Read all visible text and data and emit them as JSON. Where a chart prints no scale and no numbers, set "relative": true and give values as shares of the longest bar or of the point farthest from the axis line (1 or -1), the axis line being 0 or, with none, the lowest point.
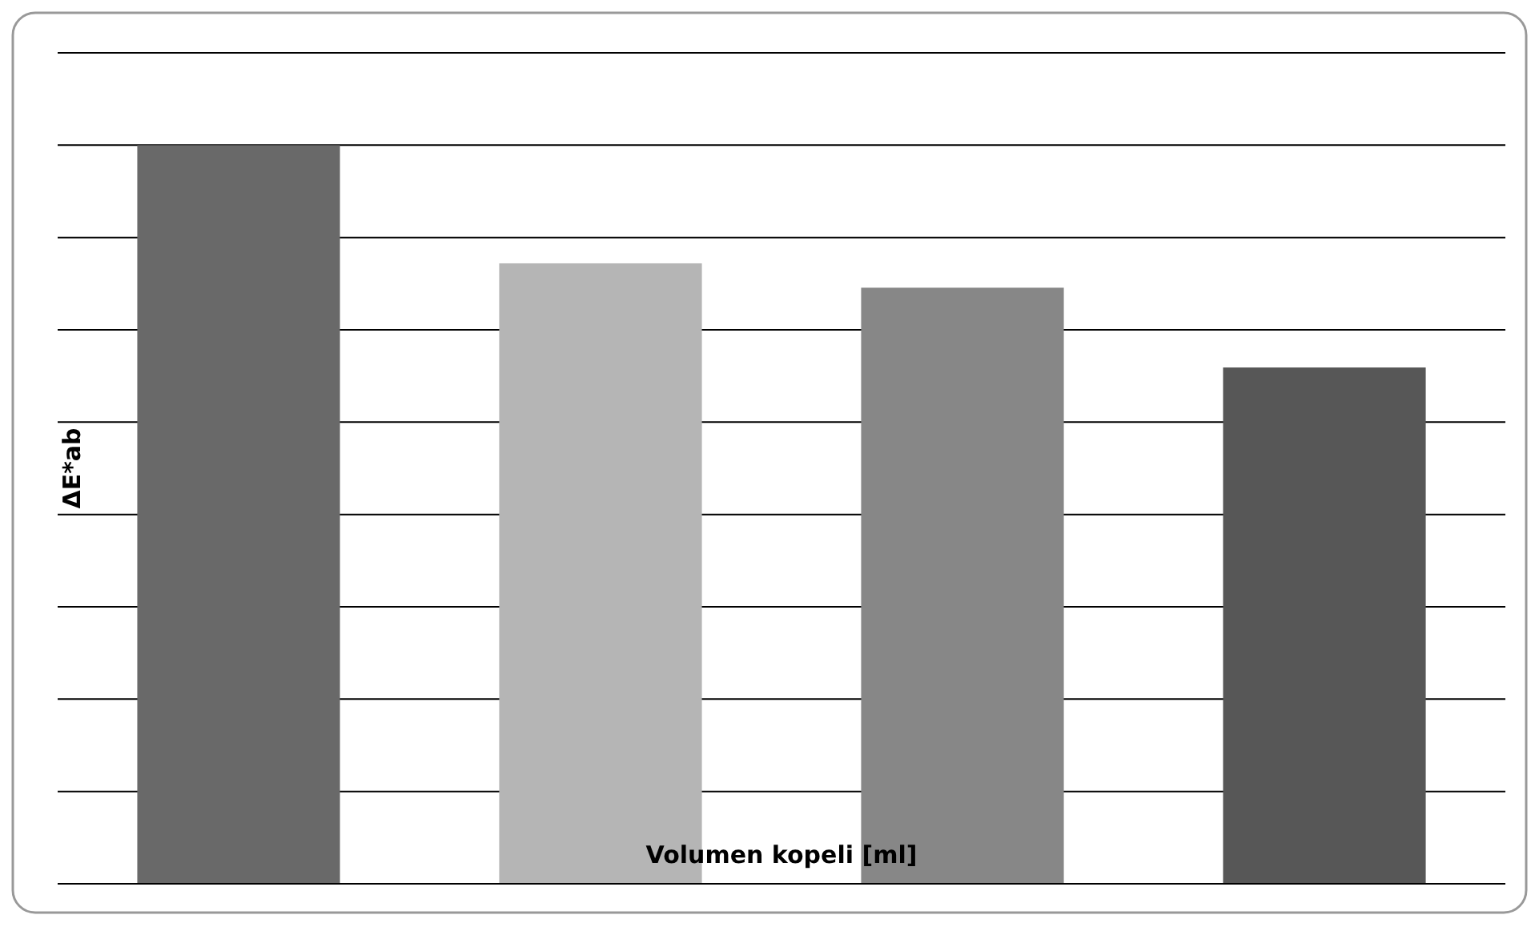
{
  "chart_data": {
    "type": "bar",
    "relative": true,
    "xlabel": "Volumen kopeli [ml]",
    "ylabel": "ΔE*ab",
    "categories": [
      null,
      null,
      null,
      null
    ],
    "values": [
      1,
      0.84,
      0.807,
      0.699
    ],
    "colors": [
      "#696969",
      "#b5b5b5",
      "#878787",
      "#575757"
    ],
    "grid": "y"
  }
}
